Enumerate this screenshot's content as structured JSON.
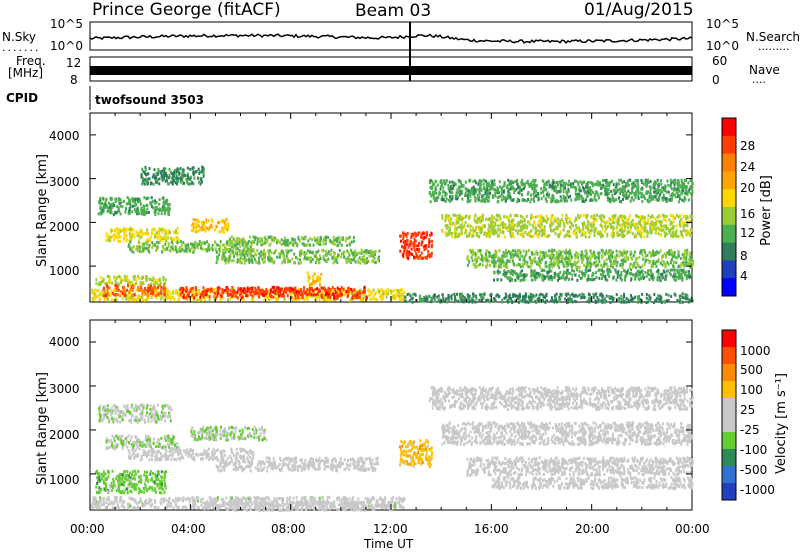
{
  "header": {
    "station": "Prince George (fitACF)",
    "beam": "Beam 03",
    "date": "01/Aug/2015"
  },
  "noise_panel": {
    "left_label": "N.Sky",
    "right_label": "N.Search",
    "ticks_left": [
      "10^5",
      "10^0"
    ],
    "ticks_right": [
      "10^5",
      "10^0"
    ]
  },
  "freq_panel": {
    "left_label_1": "Freq.",
    "left_label_2": "[MHz]",
    "left_ticks": [
      "12",
      "8"
    ],
    "right_label": "Nave",
    "right_ticks": [
      "60",
      "0"
    ]
  },
  "cpid_panel": {
    "label": "CPID",
    "mode": "twofsound 3503"
  },
  "power_panel": {
    "ylabel": "Slant Range [km]",
    "yticks": [
      "4000",
      "3000",
      "2000",
      "1000"
    ],
    "colorbar_label": "Power [dB]",
    "colorbar_ticks": [
      "28",
      "24",
      "20",
      "16",
      "12",
      "8",
      "4"
    ],
    "colorbar_colors": [
      "#0000ff",
      "#1f3fbf",
      "#2e7d5b",
      "#4caf50",
      "#9acd32",
      "#ffd700",
      "#ffa500",
      "#ff7f00",
      "#ff3f00",
      "#ff0000"
    ]
  },
  "velocity_panel": {
    "ylabel": "Slant Range [km]",
    "yticks": [
      "4000",
      "3000",
      "2000",
      "1000"
    ],
    "colorbar_label": "Velocity [m s⁻¹]",
    "colorbar_ticks": [
      "1000",
      "500",
      "100",
      "25",
      "-25",
      "-100",
      "-500",
      "-1000"
    ],
    "colorbar_colors": [
      "#2040c0",
      "#3070d0",
      "#2e8b57",
      "#66cc33",
      "#c8c8c8",
      "#c8c8c8",
      "#ffbf00",
      "#ff8c00",
      "#ff5000",
      "#ff0000"
    ]
  },
  "x_axis": {
    "label": "Time UT",
    "ticks": [
      "00:00",
      "04:00",
      "08:00",
      "12:00",
      "16:00",
      "20:00",
      "00:00"
    ]
  },
  "chart_data": {
    "type": "heatmap",
    "title": "Prince George (fitACF)",
    "x_range_hours": [
      0,
      24
    ],
    "y_range_km": [
      180,
      4500
    ],
    "xlabel": "Time UT",
    "ylabel": "Slant Range [km]",
    "panels": [
      {
        "name": "Power [dB]",
        "range": [
          0,
          30
        ],
        "scatter_bands": [
          {
            "t": [
              0.2,
              3.0
            ],
            "r": [
              600,
              800
            ],
            "v": 14
          },
          {
            "t": [
              0.3,
              3.2
            ],
            "r": [
              2200,
              2600
            ],
            "v": 10
          },
          {
            "t": [
              0.6,
              3.5
            ],
            "r": [
              1600,
              1900
            ],
            "v": 16
          },
          {
            "t": [
              1.5,
              6.5
            ],
            "r": [
              1350,
              1600
            ],
            "v": 12
          },
          {
            "t": [
              2.0,
              4.5
            ],
            "r": [
              2900,
              3300
            ],
            "v": 8
          },
          {
            "t": [
              4.0,
              5.5
            ],
            "r": [
              1800,
              2100
            ],
            "v": 18
          },
          {
            "t": [
              5.0,
              11.5
            ],
            "r": [
              1100,
              1400
            ],
            "v": 12
          },
          {
            "t": [
              5.5,
              10.5
            ],
            "r": [
              1500,
              1700
            ],
            "v": 12
          },
          {
            "t": [
              0.0,
              12.5
            ],
            "r": [
              250,
              500
            ],
            "v": 16
          },
          {
            "t": [
              3.5,
              11.0
            ],
            "r": [
              300,
              550
            ],
            "v": 26
          },
          {
            "t": [
              0.5,
              3.0
            ],
            "r": [
              350,
              600
            ],
            "v": 24
          },
          {
            "t": [
              8.6,
              9.2
            ],
            "r": [
              600,
              900
            ],
            "v": 18
          },
          {
            "t": [
              12.3,
              13.6
            ],
            "r": [
              1200,
              1800
            ],
            "v": 26
          },
          {
            "t": [
              13.5,
              24.0
            ],
            "r": [
              2500,
              3000
            ],
            "v": 10
          },
          {
            "t": [
              14.0,
              24.0
            ],
            "r": [
              1700,
              2200
            ],
            "v": 14
          },
          {
            "t": [
              15.0,
              24.0
            ],
            "r": [
              1000,
              1400
            ],
            "v": 12
          },
          {
            "t": [
              16.0,
              24.0
            ],
            "r": [
              700,
              950
            ],
            "v": 10
          },
          {
            "t": [
              12.5,
              24.0
            ],
            "r": [
              200,
              400
            ],
            "v": 8
          }
        ]
      },
      {
        "name": "Velocity [m s^-1]",
        "range": [
          -1000,
          1000
        ],
        "scatter_bands": [
          {
            "t": [
              0.2,
              3.0
            ],
            "r": [
              600,
              1100
            ],
            "v": -300
          },
          {
            "t": [
              0.3,
              3.2
            ],
            "r": [
              2200,
              2600
            ],
            "v": -150
          },
          {
            "t": [
              0.6,
              3.5
            ],
            "r": [
              1600,
              1900
            ],
            "v": -200
          },
          {
            "t": [
              1.5,
              6.5
            ],
            "r": [
              1350,
              1600
            ],
            "v": 0
          },
          {
            "t": [
              4.0,
              7.0
            ],
            "r": [
              1800,
              2100
            ],
            "v": -200
          },
          {
            "t": [
              5.0,
              11.5
            ],
            "r": [
              1100,
              1400
            ],
            "v": 0
          },
          {
            "t": [
              0.0,
              12.5
            ],
            "r": [
              250,
              500
            ],
            "v": -90
          },
          {
            "t": [
              4.5,
              12.0
            ],
            "r": [
              200,
              400
            ],
            "v": 60
          },
          {
            "t": [
              12.3,
              13.6
            ],
            "r": [
              1200,
              1800
            ],
            "v": 300
          },
          {
            "t": [
              13.5,
              24.0
            ],
            "r": [
              2500,
              3000
            ],
            "v": 0
          },
          {
            "t": [
              14.0,
              24.0
            ],
            "r": [
              1700,
              2200
            ],
            "v": 0
          },
          {
            "t": [
              15.0,
              24.0
            ],
            "r": [
              1000,
              1400
            ],
            "v": 0
          },
          {
            "t": [
              16.0,
              24.0
            ],
            "r": [
              700,
              950
            ],
            "v": 0
          }
        ]
      }
    ]
  }
}
